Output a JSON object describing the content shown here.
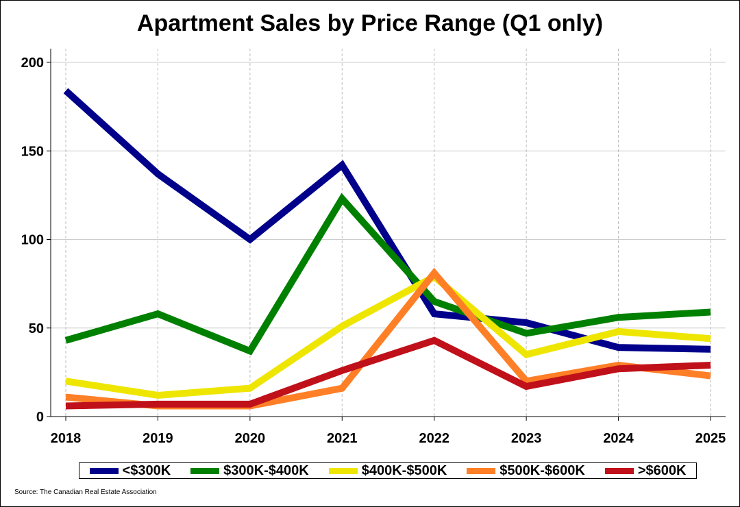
{
  "chart_data": {
    "type": "line",
    "title": "Apartment Sales by Price Range (Q1 only)",
    "xlabel": "",
    "ylabel": "",
    "x": [
      2018,
      2019,
      2020,
      2021,
      2022,
      2023,
      2024,
      2025
    ],
    "x_tick_labels": [
      "2018",
      "2019",
      "2020",
      "2021",
      "2022",
      "2023",
      "2024",
      "2025"
    ],
    "ylim": [
      0,
      200
    ],
    "y_ticks": [
      0,
      50,
      100,
      150,
      200
    ],
    "y_tick_labels": [
      "0",
      "50",
      "100",
      "150",
      "200"
    ],
    "grid": true,
    "legend_position": "bottom",
    "series": [
      {
        "name": "<$300K",
        "color": "#00008B",
        "values": [
          184,
          137,
          100,
          142,
          58,
          53,
          39,
          38
        ]
      },
      {
        "name": "$300K-$400K",
        "color": "#008000",
        "values": [
          43,
          58,
          37,
          123,
          65,
          47,
          56,
          59
        ]
      },
      {
        "name": "$400K-$500K",
        "color": "#EEE600",
        "values": [
          20,
          12,
          16,
          51,
          79,
          35,
          48,
          44
        ]
      },
      {
        "name": "$500K-$600K",
        "color": "#FF7F27",
        "values": [
          11,
          6,
          6,
          16,
          81,
          20,
          29,
          23
        ]
      },
      {
        "name": ">$600K",
        "color": "#C0101A",
        "values": [
          6,
          7,
          7,
          26,
          43,
          17,
          27,
          29
        ]
      }
    ],
    "source": "Source: The Canadian Real Estate Association"
  }
}
